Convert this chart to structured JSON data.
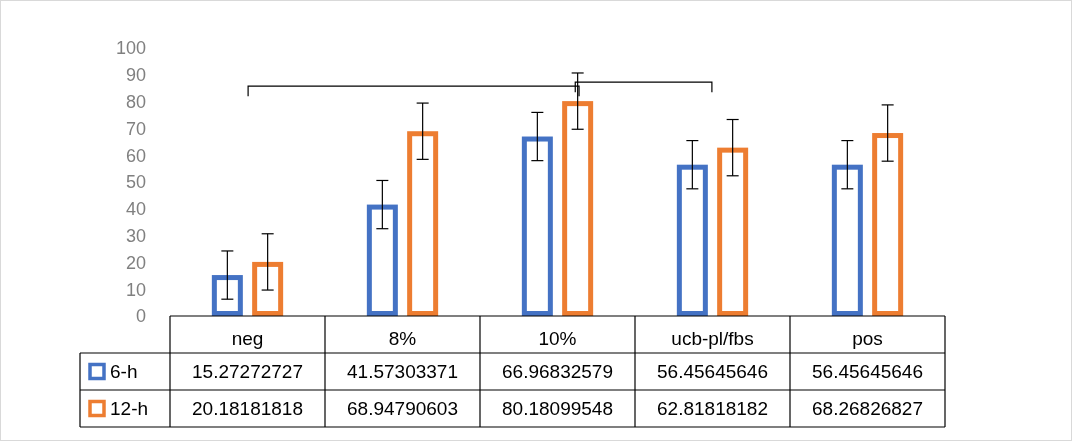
{
  "chart_data": {
    "type": "bar",
    "categories": [
      "neg",
      "8%",
      "10%",
      "ucb-pl/fbs",
      "pos"
    ],
    "series": [
      {
        "name": "6-h",
        "color": "#4472c4",
        "values": [
          15.27272727,
          41.57303371,
          66.96832579,
          56.45645646,
          56.45645646
        ],
        "errors": [
          9,
          9,
          9,
          9,
          9
        ]
      },
      {
        "name": "12-h",
        "color": "#ed7d31",
        "values": [
          20.18181818,
          68.94790603,
          80.18099548,
          62.81818182,
          68.26826827
        ],
        "errors": [
          10.5,
          10.5,
          10.5,
          10.5,
          10.5
        ]
      }
    ],
    "ylim": [
      0,
      100
    ],
    "yticks": [
      0,
      10,
      20,
      30,
      40,
      50,
      60,
      70,
      80,
      90,
      100
    ],
    "data_labels": true,
    "legend": "bottom left"
  }
}
